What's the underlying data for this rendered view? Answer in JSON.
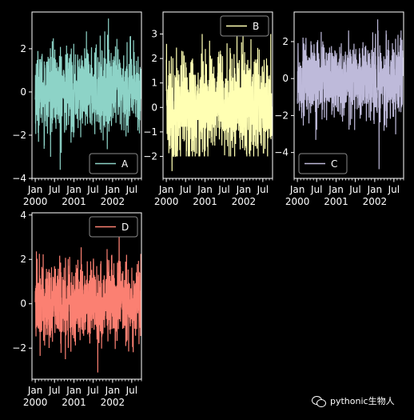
{
  "colors": {
    "background": "#000000",
    "axis": "#ffffff",
    "legend_face": "#000000",
    "legend_edge": "#8a8a8a"
  },
  "watermark": {
    "icon": "wechat-icon",
    "text": "pythonic生物人"
  },
  "chart_data": [
    {
      "type": "line",
      "series": [
        {
          "name": "A",
          "color": "#8dd3c7",
          "y_min": -3.6,
          "y_max": 3.4,
          "y_low": -1.2,
          "y_high": 1.3
        }
      ],
      "x_range": [
        "1999-12-01",
        "2002-10-01"
      ],
      "x_major_ticks": [
        "2000-01-01",
        "2000-07-01",
        "2001-01-01",
        "2001-07-01",
        "2002-01-01",
        "2002-07-01"
      ],
      "x_tick_labels": [
        [
          "Jan",
          "2000"
        ],
        [
          "Jul",
          ""
        ],
        [
          "Jan",
          "2001"
        ],
        [
          "Jul",
          ""
        ],
        [
          "Jan",
          "2002"
        ],
        [
          "Jul",
          ""
        ]
      ],
      "ylim": [
        -4,
        3.7
      ],
      "y_ticks": [
        -4,
        -2,
        0,
        2
      ],
      "legend": "lower right"
    },
    {
      "type": "line",
      "series": [
        {
          "name": "B",
          "color": "#ffffb3",
          "y_min": -2.6,
          "y_max": 3.6,
          "y_low": -1.4,
          "y_high": 1.5
        }
      ],
      "x_range": [
        "1999-12-01",
        "2002-10-01"
      ],
      "x_major_ticks": [
        "2000-01-01",
        "2000-07-01",
        "2001-01-01",
        "2001-07-01",
        "2002-01-01",
        "2002-07-01"
      ],
      "x_tick_labels": [
        [
          "Jan",
          "2000"
        ],
        [
          "Jul",
          ""
        ],
        [
          "Jan",
          "2001"
        ],
        [
          "Jul",
          ""
        ],
        [
          "Jan",
          "2002"
        ],
        [
          "Jul",
          ""
        ]
      ],
      "ylim": [
        -2.9,
        3.9
      ],
      "y_ticks": [
        -2,
        -1,
        0,
        1,
        2,
        3
      ],
      "legend": "upper right"
    },
    {
      "type": "line",
      "series": [
        {
          "name": "C",
          "color": "#bebada",
          "y_min": -4.9,
          "y_max": 3.2,
          "y_low": -1.4,
          "y_high": 1.3
        }
      ],
      "x_range": [
        "1999-12-01",
        "2002-10-01"
      ],
      "x_major_ticks": [
        "2000-01-01",
        "2000-07-01",
        "2001-01-01",
        "2001-07-01",
        "2002-01-01",
        "2002-07-01"
      ],
      "x_tick_labels": [
        [
          "Jan",
          "2000"
        ],
        [
          "Jul",
          ""
        ],
        [
          "Jan",
          "2001"
        ],
        [
          "Jul",
          ""
        ],
        [
          "Jan",
          "2002"
        ],
        [
          "Jul",
          ""
        ]
      ],
      "ylim": [
        -5.4,
        3.6
      ],
      "y_ticks": [
        -4,
        -2,
        0,
        2
      ],
      "legend": "lower left"
    },
    {
      "type": "line",
      "series": [
        {
          "name": "D",
          "color": "#fb8072",
          "y_min": -3.1,
          "y_max": 3.8,
          "y_low": -1.2,
          "y_high": 1.3
        }
      ],
      "x_range": [
        "1999-12-01",
        "2002-10-01"
      ],
      "x_major_ticks": [
        "2000-01-01",
        "2000-07-01",
        "2001-01-01",
        "2001-07-01",
        "2002-01-01",
        "2002-07-01"
      ],
      "x_tick_labels": [
        [
          "Jan",
          "2000"
        ],
        [
          "Jul",
          ""
        ],
        [
          "Jan",
          "2001"
        ],
        [
          "Jul",
          ""
        ],
        [
          "Jan",
          "2002"
        ],
        [
          "Jul",
          ""
        ]
      ],
      "ylim": [
        -3.4,
        4.1
      ],
      "y_ticks": [
        -2,
        0,
        2,
        4
      ],
      "legend": "upper right"
    }
  ]
}
